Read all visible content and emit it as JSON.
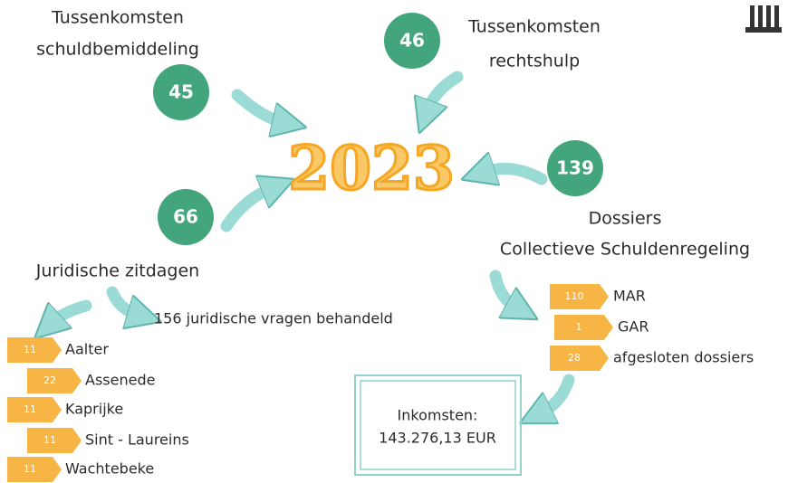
{
  "center": "2023",
  "nodes": [
    {
      "number": "45",
      "label": [
        "Tussenkomsten",
        "schuldbemiddeling"
      ]
    },
    {
      "number": "46",
      "label": [
        "Tussenkomsten",
        "rechtshulp"
      ]
    },
    {
      "number": "139",
      "label": [
        "Dossiers",
        "Collectieve Schuldenregeling"
      ]
    },
    {
      "number": "66",
      "label": [
        "Juridische zitdagen"
      ]
    }
  ],
  "questions": "156 juridische vragen behandeld",
  "municipalities": [
    {
      "number": "11",
      "name": "Aalter"
    },
    {
      "number": "22",
      "name": "Assenede"
    },
    {
      "number": "11",
      "name": "Kaprijke"
    },
    {
      "number": "11",
      "name": "Sint - Laureins"
    },
    {
      "number": "11",
      "name": "Wachtebeke"
    }
  ],
  "dossiers": [
    {
      "number": "110",
      "name": "MAR"
    },
    {
      "number": "1",
      "name": "GAR"
    },
    {
      "number": "28",
      "name": "afgesloten dossiers"
    }
  ],
  "income": {
    "label": "Inkomsten:",
    "amount": "143.276,13 EUR"
  }
}
